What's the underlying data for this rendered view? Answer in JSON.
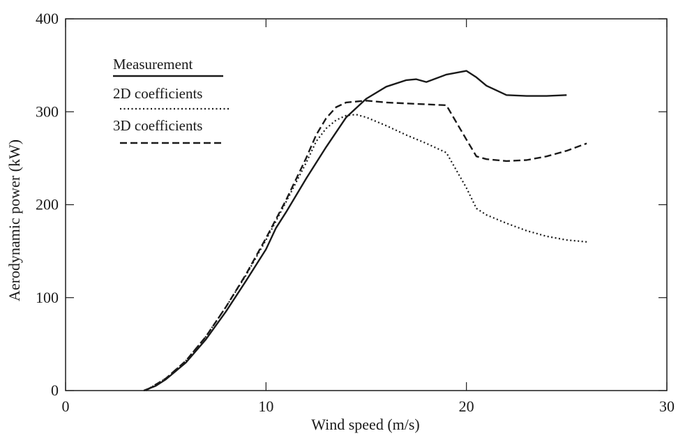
{
  "chart_data": {
    "type": "line",
    "title": "",
    "xlabel": "Wind speed (m/s)",
    "ylabel": "Aerodynamic power (kW)",
    "xlim": [
      0,
      30
    ],
    "ylim": [
      0,
      400
    ],
    "xticks": [
      0,
      10,
      20,
      30
    ],
    "yticks": [
      0,
      100,
      200,
      300,
      400
    ],
    "grid": false,
    "legend_position": "top-left",
    "series": [
      {
        "name": "Measurement",
        "style": "solid",
        "color": "#1a1a1a",
        "points": [
          [
            3.9,
            0
          ],
          [
            4.5,
            5
          ],
          [
            5,
            12
          ],
          [
            6,
            30
          ],
          [
            7,
            55
          ],
          [
            8,
            85
          ],
          [
            9,
            118
          ],
          [
            10,
            152
          ],
          [
            10.5,
            175
          ],
          [
            11,
            192
          ],
          [
            12,
            228
          ],
          [
            13,
            262
          ],
          [
            14,
            294
          ],
          [
            15,
            314
          ],
          [
            16,
            327
          ],
          [
            17,
            334
          ],
          [
            17.5,
            335
          ],
          [
            18,
            332
          ],
          [
            18.5,
            336
          ],
          [
            19,
            340
          ],
          [
            20,
            344
          ],
          [
            20.5,
            337
          ],
          [
            21,
            328
          ],
          [
            22,
            318
          ],
          [
            23,
            317
          ],
          [
            24,
            317
          ],
          [
            25,
            318
          ]
        ]
      },
      {
        "name": "2D coefficients",
        "style": "dotted",
        "color": "#1a1a1a",
        "points": [
          [
            4,
            0
          ],
          [
            5,
            13
          ],
          [
            6,
            32
          ],
          [
            7,
            58
          ],
          [
            8,
            90
          ],
          [
            9,
            124
          ],
          [
            10,
            162
          ],
          [
            11,
            203
          ],
          [
            12,
            245
          ],
          [
            12.5,
            268
          ],
          [
            13,
            282
          ],
          [
            13.5,
            291
          ],
          [
            14,
            296
          ],
          [
            14.5,
            297
          ],
          [
            15,
            294
          ],
          [
            16,
            285
          ],
          [
            17,
            275
          ],
          [
            18,
            266
          ],
          [
            19,
            256
          ],
          [
            20,
            218
          ],
          [
            20.5,
            196
          ],
          [
            21,
            189
          ],
          [
            22,
            180
          ],
          [
            23,
            172
          ],
          [
            24,
            166
          ],
          [
            25,
            162
          ],
          [
            26,
            160
          ]
        ]
      },
      {
        "name": "3D coefficients",
        "style": "dashed",
        "color": "#1a1a1a",
        "points": [
          [
            4,
            0
          ],
          [
            5,
            13
          ],
          [
            6,
            32
          ],
          [
            7,
            58
          ],
          [
            8,
            90
          ],
          [
            9,
            125
          ],
          [
            10,
            164
          ],
          [
            11,
            205
          ],
          [
            12,
            250
          ],
          [
            12.5,
            275
          ],
          [
            13,
            293
          ],
          [
            13.5,
            305
          ],
          [
            14,
            310
          ],
          [
            15,
            312
          ],
          [
            16,
            310
          ],
          [
            17,
            309
          ],
          [
            18,
            308
          ],
          [
            19,
            307
          ],
          [
            20,
            270
          ],
          [
            20.5,
            252
          ],
          [
            21,
            249
          ],
          [
            22,
            247
          ],
          [
            23,
            248
          ],
          [
            24,
            252
          ],
          [
            25,
            258
          ],
          [
            26,
            266
          ]
        ]
      }
    ]
  }
}
